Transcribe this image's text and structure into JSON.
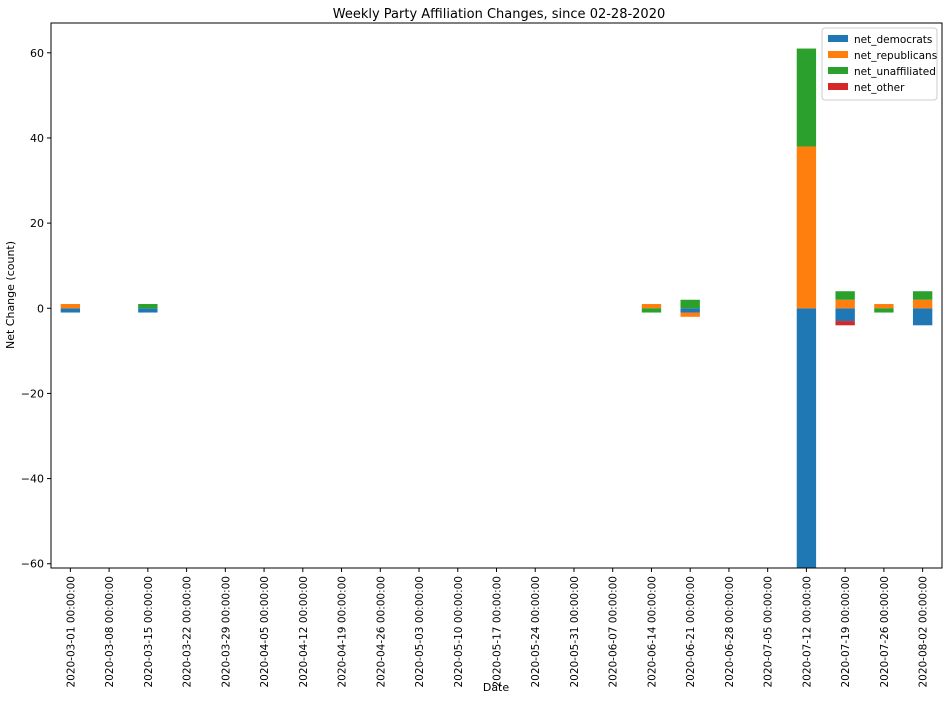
{
  "chart_data": {
    "type": "bar",
    "stacked": true,
    "title": "Weekly Party Affiliation Changes, since 02-28-2020",
    "xlabel": "Date",
    "ylabel": "Net Change (count)",
    "ylim": [
      -61,
      67
    ],
    "yticks": [
      -60,
      -40,
      -20,
      0,
      20,
      40,
      60
    ],
    "ytick_labels": [
      "−60",
      "−40",
      "−20",
      "0",
      "20",
      "40",
      "60"
    ],
    "grid": false,
    "legend_position": "top-right",
    "categories": [
      "2020-03-01 00:00:00",
      "2020-03-08 00:00:00",
      "2020-03-15 00:00:00",
      "2020-03-22 00:00:00",
      "2020-03-29 00:00:00",
      "2020-04-05 00:00:00",
      "2020-04-12 00:00:00",
      "2020-04-19 00:00:00",
      "2020-04-26 00:00:00",
      "2020-05-03 00:00:00",
      "2020-05-10 00:00:00",
      "2020-05-17 00:00:00",
      "2020-05-24 00:00:00",
      "2020-05-31 00:00:00",
      "2020-06-07 00:00:00",
      "2020-06-14 00:00:00",
      "2020-06-21 00:00:00",
      "2020-06-28 00:00:00",
      "2020-07-05 00:00:00",
      "2020-07-12 00:00:00",
      "2020-07-19 00:00:00",
      "2020-07-26 00:00:00",
      "2020-08-02 00:00:00"
    ],
    "series": [
      {
        "name": "net_democrats",
        "color": "#1f77b4",
        "values": [
          -1,
          0,
          -1,
          0,
          0,
          0,
          0,
          0,
          0,
          0,
          0,
          0,
          0,
          0,
          0,
          0,
          -1,
          0,
          0,
          -61,
          -3,
          0,
          -4
        ]
      },
      {
        "name": "net_republicans",
        "color": "#ff7f0e",
        "values": [
          1,
          0,
          0,
          0,
          0,
          0,
          0,
          0,
          0,
          0,
          0,
          0,
          0,
          0,
          0,
          1,
          -1,
          0,
          0,
          38,
          2,
          1,
          2
        ]
      },
      {
        "name": "net_unaffiliated",
        "color": "#2ca02c",
        "values": [
          0,
          0,
          1,
          0,
          0,
          0,
          0,
          0,
          0,
          0,
          0,
          0,
          0,
          0,
          0,
          -1,
          2,
          0,
          0,
          23,
          2,
          -1,
          2
        ]
      },
      {
        "name": "net_other",
        "color": "#d62728",
        "values": [
          0,
          0,
          0,
          0,
          0,
          0,
          0,
          0,
          0,
          0,
          0,
          0,
          0,
          0,
          0,
          0,
          0,
          0,
          0,
          0,
          -1,
          0,
          0
        ]
      }
    ]
  }
}
